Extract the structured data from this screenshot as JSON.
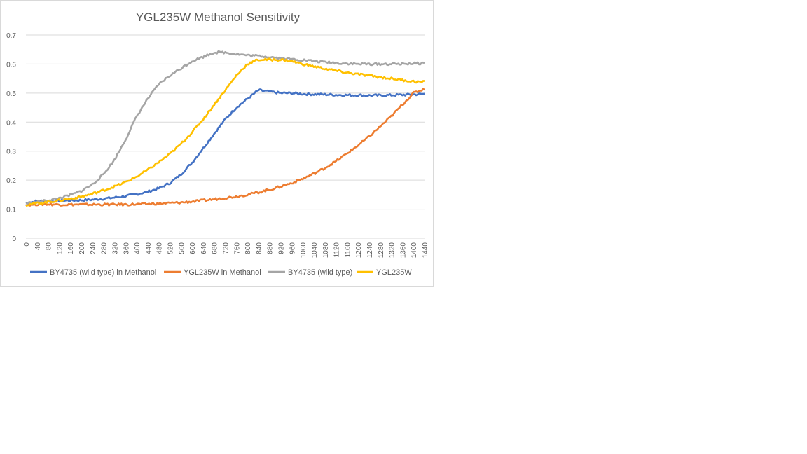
{
  "chart_data": {
    "type": "line",
    "title": "YGL235W Methanol Sensitivity",
    "xlabel": "",
    "ylabel": "",
    "ylim": [
      0,
      0.7
    ],
    "xlim": [
      0,
      1440
    ],
    "y_ticks": [
      "0",
      "0.1",
      "0.2",
      "0.3",
      "0.4",
      "0.5",
      "0.6",
      "0.7"
    ],
    "x_ticks": [
      "0",
      "40",
      "80",
      "120",
      "160",
      "200",
      "240",
      "280",
      "320",
      "360",
      "400",
      "440",
      "480",
      "520",
      "560",
      "600",
      "640",
      "680",
      "720",
      "760",
      "800",
      "840",
      "880",
      "920",
      "960",
      "1000",
      "1040",
      "1080",
      "1120",
      "1160",
      "1200",
      "1240",
      "1280",
      "1320",
      "1360",
      "1400",
      "1440"
    ],
    "grid": "horizontal",
    "legend_position": "bottom",
    "series": [
      {
        "name": "BY4735 (wild type) in Methanol",
        "color": "#4472c4",
        "points": [
          [
            0,
            0.12
          ],
          [
            40,
            0.128
          ],
          [
            80,
            0.128
          ],
          [
            120,
            0.129
          ],
          [
            160,
            0.13
          ],
          [
            200,
            0.131
          ],
          [
            240,
            0.133
          ],
          [
            280,
            0.136
          ],
          [
            320,
            0.14
          ],
          [
            360,
            0.145
          ],
          [
            400,
            0.152
          ],
          [
            440,
            0.16
          ],
          [
            480,
            0.172
          ],
          [
            520,
            0.19
          ],
          [
            560,
            0.22
          ],
          [
            600,
            0.26
          ],
          [
            640,
            0.31
          ],
          [
            680,
            0.36
          ],
          [
            720,
            0.41
          ],
          [
            760,
            0.45
          ],
          [
            800,
            0.48
          ],
          [
            840,
            0.51
          ],
          [
            880,
            0.505
          ],
          [
            920,
            0.5
          ],
          [
            960,
            0.5
          ],
          [
            1000,
            0.497
          ],
          [
            1040,
            0.496
          ],
          [
            1080,
            0.495
          ],
          [
            1120,
            0.494
          ],
          [
            1160,
            0.493
          ],
          [
            1200,
            0.493
          ],
          [
            1240,
            0.492
          ],
          [
            1280,
            0.492
          ],
          [
            1320,
            0.493
          ],
          [
            1360,
            0.494
          ],
          [
            1400,
            0.495
          ],
          [
            1440,
            0.497
          ]
        ]
      },
      {
        "name": "YGL235W in Methanol",
        "color": "#ed7d31",
        "points": [
          [
            0,
            0.115
          ],
          [
            40,
            0.117
          ],
          [
            80,
            0.117
          ],
          [
            120,
            0.116
          ],
          [
            160,
            0.116
          ],
          [
            200,
            0.116
          ],
          [
            240,
            0.116
          ],
          [
            280,
            0.116
          ],
          [
            320,
            0.116
          ],
          [
            360,
            0.116
          ],
          [
            400,
            0.117
          ],
          [
            440,
            0.118
          ],
          [
            480,
            0.119
          ],
          [
            520,
            0.121
          ],
          [
            560,
            0.123
          ],
          [
            600,
            0.126
          ],
          [
            640,
            0.13
          ],
          [
            680,
            0.134
          ],
          [
            720,
            0.139
          ],
          [
            760,
            0.144
          ],
          [
            800,
            0.15
          ],
          [
            840,
            0.158
          ],
          [
            880,
            0.167
          ],
          [
            920,
            0.178
          ],
          [
            960,
            0.19
          ],
          [
            1000,
            0.205
          ],
          [
            1040,
            0.222
          ],
          [
            1080,
            0.242
          ],
          [
            1120,
            0.265
          ],
          [
            1160,
            0.292
          ],
          [
            1200,
            0.32
          ],
          [
            1240,
            0.35
          ],
          [
            1280,
            0.385
          ],
          [
            1320,
            0.42
          ],
          [
            1360,
            0.46
          ],
          [
            1400,
            0.5
          ],
          [
            1440,
            0.515
          ]
        ]
      },
      {
        "name": "BY4735 (wild type)",
        "color": "#a5a5a5",
        "points": [
          [
            0,
            0.12
          ],
          [
            40,
            0.125
          ],
          [
            80,
            0.13
          ],
          [
            120,
            0.138
          ],
          [
            160,
            0.148
          ],
          [
            200,
            0.163
          ],
          [
            240,
            0.185
          ],
          [
            280,
            0.22
          ],
          [
            320,
            0.27
          ],
          [
            360,
            0.34
          ],
          [
            400,
            0.42
          ],
          [
            440,
            0.48
          ],
          [
            480,
            0.53
          ],
          [
            520,
            0.56
          ],
          [
            560,
            0.585
          ],
          [
            600,
            0.61
          ],
          [
            640,
            0.625
          ],
          [
            680,
            0.64
          ],
          [
            720,
            0.64
          ],
          [
            760,
            0.635
          ],
          [
            800,
            0.63
          ],
          [
            840,
            0.628
          ],
          [
            880,
            0.625
          ],
          [
            920,
            0.62
          ],
          [
            960,
            0.617
          ],
          [
            1000,
            0.614
          ],
          [
            1040,
            0.61
          ],
          [
            1080,
            0.607
          ],
          [
            1120,
            0.604
          ],
          [
            1160,
            0.602
          ],
          [
            1200,
            0.6
          ],
          [
            1240,
            0.6
          ],
          [
            1280,
            0.6
          ],
          [
            1320,
            0.6
          ],
          [
            1360,
            0.601
          ],
          [
            1400,
            0.602
          ],
          [
            1440,
            0.603
          ]
        ]
      },
      {
        "name": "YGL235W",
        "color": "#ffc000",
        "points": [
          [
            0,
            0.115
          ],
          [
            40,
            0.12
          ],
          [
            80,
            0.125
          ],
          [
            120,
            0.13
          ],
          [
            160,
            0.136
          ],
          [
            200,
            0.143
          ],
          [
            240,
            0.153
          ],
          [
            280,
            0.165
          ],
          [
            320,
            0.178
          ],
          [
            360,
            0.193
          ],
          [
            400,
            0.212
          ],
          [
            440,
            0.235
          ],
          [
            480,
            0.262
          ],
          [
            520,
            0.29
          ],
          [
            560,
            0.325
          ],
          [
            600,
            0.365
          ],
          [
            640,
            0.41
          ],
          [
            680,
            0.46
          ],
          [
            720,
            0.51
          ],
          [
            760,
            0.56
          ],
          [
            800,
            0.6
          ],
          [
            840,
            0.615
          ],
          [
            880,
            0.615
          ],
          [
            920,
            0.615
          ],
          [
            960,
            0.61
          ],
          [
            1000,
            0.6
          ],
          [
            1040,
            0.592
          ],
          [
            1080,
            0.584
          ],
          [
            1120,
            0.577
          ],
          [
            1160,
            0.57
          ],
          [
            1200,
            0.565
          ],
          [
            1240,
            0.56
          ],
          [
            1280,
            0.555
          ],
          [
            1320,
            0.55
          ],
          [
            1360,
            0.545
          ],
          [
            1400,
            0.54
          ],
          [
            1440,
            0.538
          ]
        ]
      }
    ]
  }
}
